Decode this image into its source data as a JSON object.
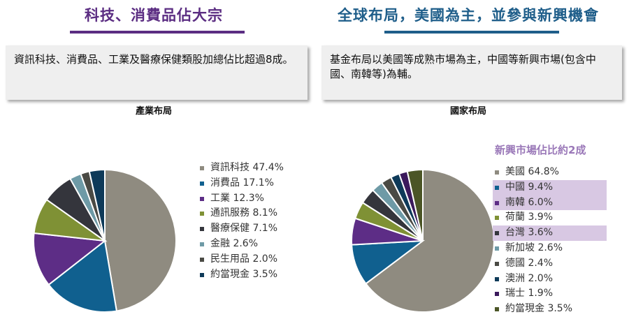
{
  "left_panel": {
    "heading": "科技、消費品佔大宗",
    "note": "資訊科技、消費品、工業及醫療保健類股加總佔比超過8成。",
    "chart_title": "產業布局"
  },
  "right_panel": {
    "heading": "全球布局，美國為主，並參與新興機會",
    "note": "基金布局以美國等成熟市場為主，中國等新興市場(包含中國、南韓等)為輔。",
    "chart_title": "國家布局",
    "emerging_note": "新興市場佔比約2成"
  },
  "chart_data": [
    {
      "type": "pie",
      "title": "產業布局",
      "legend_position": "right",
      "slices": [
        {
          "label": "資訊科技",
          "value": 47.4,
          "display": "資訊科技 47.4%",
          "color": "#8f8b80"
        },
        {
          "label": "消費品",
          "value": 17.1,
          "display": "消費品 17.1%",
          "color": "#10608f"
        },
        {
          "label": "工業",
          "value": 12.3,
          "display": "工業 12.3%",
          "color": "#5d2d86"
        },
        {
          "label": "通訊服務",
          "value": 8.1,
          "display": "通訊服務 8.1%",
          "color": "#7f9135"
        },
        {
          "label": "醫療保健",
          "value": 7.1,
          "display": "醫療保健 7.1%",
          "color": "#34353c"
        },
        {
          "label": "金融",
          "value": 2.6,
          "display": "金融 2.6%",
          "color": "#6e9aa6"
        },
        {
          "label": "民生用品",
          "value": 2.0,
          "display": "民生用品 2.0%",
          "color": "#4a4a44"
        },
        {
          "label": "約當現金",
          "value": 3.5,
          "display": "約當現金 3.5%",
          "color": "#0e3a59"
        }
      ]
    },
    {
      "type": "pie",
      "title": "國家布局",
      "legend_position": "right",
      "slices": [
        {
          "label": "美國",
          "value": 64.8,
          "display": "美國 64.8%",
          "color": "#8f8b80",
          "highlight": false
        },
        {
          "label": "中國",
          "value": 9.4,
          "display": "中國 9.4%",
          "color": "#10608f",
          "highlight": true
        },
        {
          "label": "南韓",
          "value": 6.0,
          "display": "南韓 6.0%",
          "color": "#5d2d86",
          "highlight": true
        },
        {
          "label": "荷蘭",
          "value": 3.9,
          "display": "荷蘭 3.9%",
          "color": "#7f9135",
          "highlight": false
        },
        {
          "label": "台灣",
          "value": 3.6,
          "display": "台灣 3.6%",
          "color": "#34353c",
          "highlight": true
        },
        {
          "label": "新加坡",
          "value": 2.6,
          "display": "新加坡 2.6%",
          "color": "#6e9aa6",
          "highlight": false
        },
        {
          "label": "德國",
          "value": 2.4,
          "display": "德國 2.4%",
          "color": "#4a4a44",
          "highlight": false
        },
        {
          "label": "澳洲",
          "value": 2.0,
          "display": "澳洲 2.0%",
          "color": "#0e3a59",
          "highlight": false
        },
        {
          "label": "瑞士",
          "value": 1.9,
          "display": "瑞士 1.9%",
          "color": "#3b1a5c",
          "highlight": false
        },
        {
          "label": "約當現金",
          "value": 3.5,
          "display": "約當現金 3.5%",
          "color": "#4b5526",
          "highlight": false
        }
      ]
    }
  ]
}
